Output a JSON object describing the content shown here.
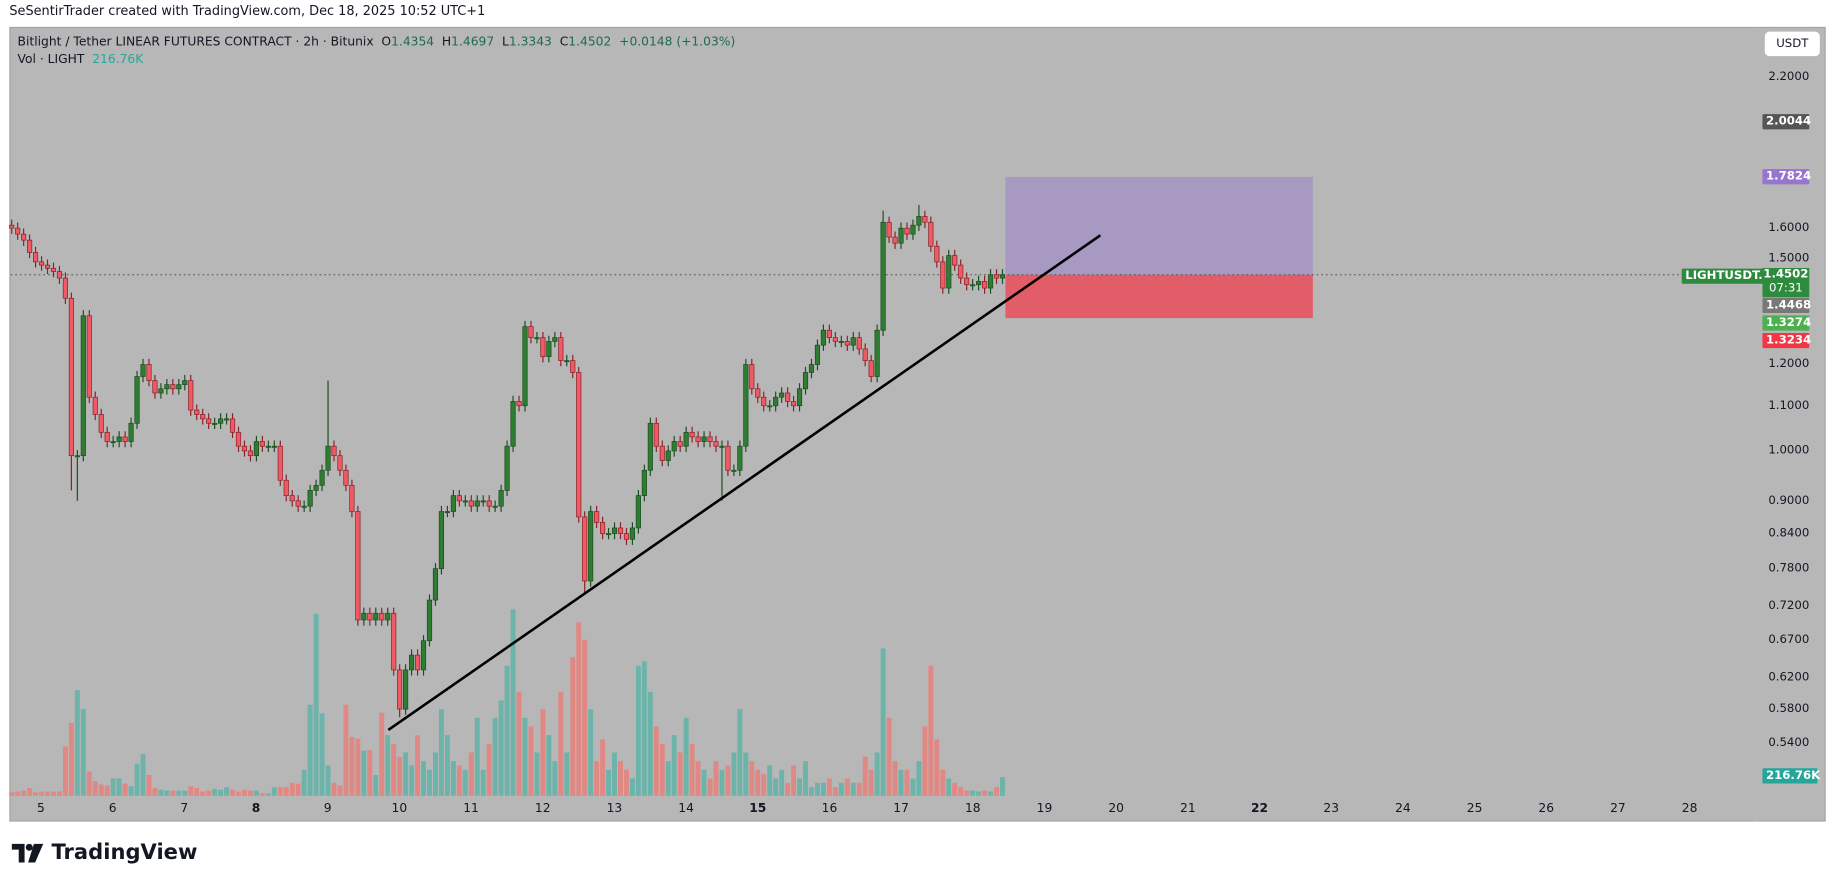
{
  "credit": "SeSentirTrader created with TradingView.com, Dec 18, 2025 10:52 UTC+1",
  "legend": {
    "title": "Bitlight / Tether LINEAR FUTURES CONTRACT · 2h · Bitunix",
    "o_label": "O",
    "o": "1.4354",
    "h_label": "H",
    "h": "1.4697",
    "l_label": "L",
    "l": "1.3343",
    "c_label": "C",
    "c": "1.4502",
    "change": "+0.0148 (+1.03%)",
    "vol_label": "Vol · LIGHT",
    "vol": "216.76K"
  },
  "currency_button": "USDT",
  "price_tags": {
    "line_level": "2.0044",
    "target": "1.7824",
    "symbol": "LIGHTUSDT.P",
    "last": "1.4502",
    "countdown": "07:31",
    "gray": "1.4468",
    "green": "1.3274",
    "stop": "1.3234",
    "volume": "216.76K"
  },
  "colors": {
    "bg": "#b7b7b7",
    "up": "#2e7d32",
    "down": "#f05a64",
    "vol_up": "#6cb4aa",
    "vol_down": "#e08884",
    "target_zone": "#a799c2",
    "stop_zone": "#e35d68",
    "trendline": "#000000"
  },
  "footer": {
    "brand": "TradingView"
  },
  "chart_data": {
    "type": "candlestick",
    "title": "Bitlight / Tether LINEAR FUTURES CONTRACT · 2h · Bitunix",
    "scale": "log",
    "ylim": [
      0.52,
      2.28
    ],
    "y_ticks": [
      "2.2000",
      "1.6000",
      "1.5000",
      "1.2000",
      "1.1000",
      "1.0000",
      "0.9000",
      "0.8400",
      "0.7800",
      "0.7200",
      "0.6700",
      "0.6200",
      "0.5800",
      "0.5400"
    ],
    "x_ticks": [
      {
        "label": "5",
        "bold": false
      },
      {
        "label": "6",
        "bold": false
      },
      {
        "label": "7",
        "bold": false
      },
      {
        "label": "8",
        "bold": true
      },
      {
        "label": "9",
        "bold": false
      },
      {
        "label": "10",
        "bold": false
      },
      {
        "label": "11",
        "bold": false
      },
      {
        "label": "12",
        "bold": false
      },
      {
        "label": "13",
        "bold": false
      },
      {
        "label": "14",
        "bold": false
      },
      {
        "label": "15",
        "bold": true
      },
      {
        "label": "16",
        "bold": false
      },
      {
        "label": "17",
        "bold": false
      },
      {
        "label": "18",
        "bold": false
      },
      {
        "label": "19",
        "bold": false
      },
      {
        "label": "20",
        "bold": false
      },
      {
        "label": "21",
        "bold": false
      },
      {
        "label": "22",
        "bold": true
      },
      {
        "label": "23",
        "bold": false
      },
      {
        "label": "24",
        "bold": false
      },
      {
        "label": "25",
        "bold": false
      },
      {
        "label": "26",
        "bold": false
      },
      {
        "label": "27",
        "bold": false
      },
      {
        "label": "28",
        "bold": false
      }
    ],
    "first_open": 1.61,
    "closes": [
      1.6,
      1.58,
      1.56,
      1.52,
      1.49,
      1.48,
      1.47,
      1.46,
      1.44,
      1.38,
      0.99,
      0.99,
      1.33,
      1.12,
      1.08,
      1.04,
      1.02,
      1.02,
      1.03,
      1.02,
      1.06,
      1.17,
      1.2,
      1.16,
      1.13,
      1.14,
      1.15,
      1.14,
      1.15,
      1.16,
      1.09,
      1.08,
      1.07,
      1.06,
      1.06,
      1.07,
      1.07,
      1.04,
      1.01,
      1.0,
      0.99,
      1.02,
      1.01,
      1.01,
      1.01,
      0.94,
      0.91,
      0.9,
      0.89,
      0.89,
      0.92,
      0.93,
      0.96,
      1.01,
      0.99,
      0.96,
      0.93,
      0.88,
      0.7,
      0.71,
      0.7,
      0.71,
      0.7,
      0.71,
      0.63,
      0.58,
      0.63,
      0.65,
      0.63,
      0.67,
      0.73,
      0.78,
      0.88,
      0.88,
      0.91,
      0.9,
      0.9,
      0.89,
      0.9,
      0.9,
      0.89,
      0.89,
      0.92,
      1.01,
      1.11,
      1.1,
      1.3,
      1.27,
      1.27,
      1.22,
      1.26,
      1.27,
      1.21,
      1.21,
      1.18,
      0.87,
      0.76,
      0.88,
      0.86,
      0.84,
      0.84,
      0.85,
      0.84,
      0.83,
      0.85,
      0.91,
      0.96,
      1.06,
      1.01,
      0.98,
      1.0,
      1.02,
      1.01,
      1.04,
      1.03,
      1.02,
      1.03,
      1.02,
      1.01,
      1.01,
      0.96,
      0.96,
      1.01,
      1.2,
      1.14,
      1.12,
      1.1,
      1.1,
      1.12,
      1.13,
      1.11,
      1.1,
      1.14,
      1.18,
      1.2,
      1.25,
      1.29,
      1.27,
      1.26,
      1.26,
      1.25,
      1.27,
      1.24,
      1.21,
      1.17,
      1.29,
      1.62,
      1.57,
      1.55,
      1.6,
      1.58,
      1.61,
      1.64,
      1.62,
      1.54,
      1.49,
      1.41,
      1.51,
      1.48,
      1.44,
      1.42,
      1.42,
      1.43,
      1.41,
      1.45,
      1.44,
      1.4502
    ],
    "volumes_k": [
      40,
      50,
      60,
      90,
      40,
      50,
      50,
      50,
      50,
      570,
      840,
      1220,
      1000,
      280,
      170,
      130,
      120,
      200,
      200,
      140,
      110,
      370,
      480,
      240,
      90,
      70,
      60,
      60,
      60,
      60,
      110,
      90,
      50,
      60,
      80,
      70,
      100,
      70,
      50,
      70,
      60,
      60,
      30,
      30,
      100,
      100,
      100,
      150,
      140,
      300,
      1050,
      2100,
      950,
      350,
      150,
      120,
      1050,
      680,
      660,
      520,
      530,
      240,
      960,
      700,
      600,
      450,
      500,
      350,
      700,
      400,
      300,
      500,
      1000,
      700,
      400,
      350,
      300,
      500,
      900,
      300,
      600,
      900,
      1100,
      1500,
      2150,
      1200,
      900,
      800,
      500,
      1000,
      700,
      400,
      1200,
      500,
      1600,
      2000,
      1800,
      1000,
      400,
      650,
      300,
      500,
      400,
      300,
      200,
      1500,
      1550,
      1200,
      800,
      600,
      400,
      700,
      500,
      900,
      600,
      400,
      300,
      200,
      400,
      300,
      350,
      500,
      1000,
      500,
      400,
      300,
      250,
      350,
      200,
      300,
      150,
      350,
      200,
      400,
      100,
      150,
      150,
      200,
      100,
      150,
      200,
      150,
      150,
      450,
      300,
      500,
      1700,
      900,
      400,
      300,
      300,
      200,
      400,
      800,
      1500,
      650,
      300,
      200,
      150,
      100,
      60,
      60,
      50,
      60,
      50,
      100,
      216.76
    ],
    "long_wicks": [
      {
        "i": 10,
        "low": 0.92
      },
      {
        "i": 11,
        "low": 0.9
      },
      {
        "i": 53,
        "high": 1.16
      },
      {
        "i": 65,
        "low": 0.57
      },
      {
        "i": 96,
        "low": 0.74
      },
      {
        "i": 119,
        "low": 0.9
      },
      {
        "i": 152,
        "high": 1.68
      },
      {
        "i": 146,
        "high": 1.66
      }
    ],
    "trendline": {
      "from": {
        "bar": 63.1,
        "price": 0.555
      },
      "to": {
        "bar": 182.4,
        "price": 1.576
      }
    },
    "position_tool": {
      "from_bar": 166.5,
      "to_bar": 218,
      "entry": 1.4502,
      "target": 1.7824,
      "stop": 1.3234
    },
    "last_price_line": 1.4502
  }
}
